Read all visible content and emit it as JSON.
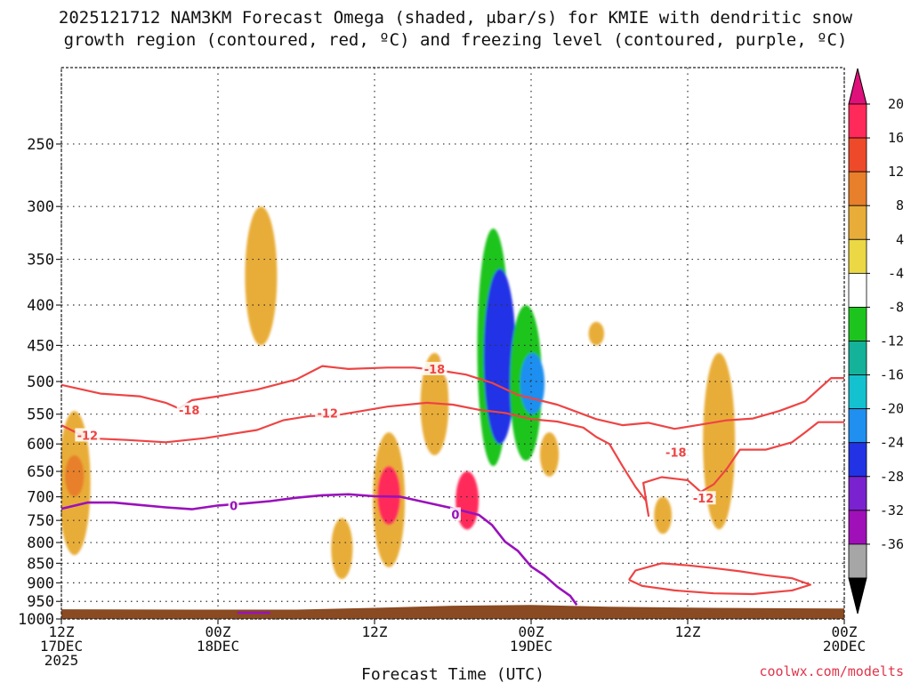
{
  "title": {
    "line1": "2025121712 NAM3KM Forecast Omega (shaded, μbar/s) for KMIE with dendritic snow",
    "line2": "growth region (contoured, red, ºC) and freezing level (contoured, purple, ºC)"
  },
  "credit": "coolwx.com/modelts",
  "colors": {
    "dgz": "#ee4444",
    "freezing": "#9911bb",
    "ground": "#8a4a22",
    "grid": "#333333"
  },
  "colorbar": {
    "labels": [
      "20",
      "16",
      "12",
      "8",
      "4",
      "-4",
      "-8",
      "-12",
      "-16",
      "-20",
      "-24",
      "-28",
      "-32",
      "-36"
    ],
    "colors": [
      "#ff2a5a",
      "#ee4a2a",
      "#e87f2a",
      "#e8ad38",
      "#ebd844",
      "#ffffff",
      "#1ec41e",
      "#15b29a",
      "#14c2cf",
      "#1f8ff0",
      "#2233e6",
      "#7a22cf",
      "#a010b8",
      "#a6a6a6"
    ],
    "top_arrow_color": "#e0107a",
    "bottom_arrow_color": "#000000"
  },
  "chart_data": {
    "type": "time-height cross section",
    "xlabel": "Forecast Time (UTC)",
    "x_ticks": [
      {
        "hour": 0,
        "line1": "12Z",
        "line2": "17DEC",
        "line3": "2025"
      },
      {
        "hour": 12,
        "line1": "00Z",
        "line2": "18DEC",
        "line3": ""
      },
      {
        "hour": 24,
        "line1": "12Z",
        "line2": "",
        "line3": ""
      },
      {
        "hour": 36,
        "line1": "00Z",
        "line2": "19DEC",
        "line3": ""
      },
      {
        "hour": 48,
        "line1": "12Z",
        "line2": "",
        "line3": ""
      },
      {
        "hour": 60,
        "line1": "00Z",
        "line2": "20DEC",
        "line3": ""
      }
    ],
    "xlim": [
      0,
      60
    ],
    "y_levels": [
      250,
      300,
      350,
      400,
      450,
      500,
      550,
      600,
      650,
      700,
      750,
      800,
      850,
      900,
      950,
      1000
    ],
    "y_axis": "pressure (hPa), log scale, inverted",
    "ylim": [
      1000,
      200
    ],
    "contour_labels": [
      {
        "text": "-18",
        "series": "dgz",
        "hour": 9.8,
        "p": 543
      },
      {
        "text": "-18",
        "series": "dgz",
        "hour": 28.6,
        "p": 482
      },
      {
        "text": "-18",
        "series": "dgz",
        "hour": 47.1,
        "p": 615
      },
      {
        "text": "-12",
        "series": "dgz",
        "hour": 2.0,
        "p": 585
      },
      {
        "text": "-12",
        "series": "dgz",
        "hour": 20.4,
        "p": 548
      },
      {
        "text": "-12",
        "series": "dgz",
        "hour": 49.2,
        "p": 703
      },
      {
        "text": "0",
        "series": "freezing",
        "hour": 13.2,
        "p": 718
      },
      {
        "text": "0",
        "series": "freezing",
        "hour": 30.2,
        "p": 737
      }
    ],
    "contours": {
      "dgz_minus18_upper": [
        [
          0,
          505
        ],
        [
          3,
          518
        ],
        [
          6,
          522
        ],
        [
          8,
          532
        ],
        [
          9,
          541
        ],
        [
          10,
          528
        ],
        [
          12,
          522
        ],
        [
          15,
          512
        ],
        [
          18,
          497
        ],
        [
          20,
          478
        ],
        [
          22,
          482
        ],
        [
          25,
          480
        ],
        [
          27,
          480
        ],
        [
          29,
          484
        ],
        [
          31,
          490
        ],
        [
          33,
          502
        ],
        [
          35,
          520
        ],
        [
          38,
          535
        ],
        [
          41,
          558
        ],
        [
          43,
          568
        ],
        [
          45,
          564
        ],
        [
          47,
          574
        ],
        [
          49,
          567
        ],
        [
          51,
          560
        ],
        [
          53,
          557
        ],
        [
          55,
          545
        ],
        [
          57,
          530
        ],
        [
          58,
          512
        ],
        [
          59,
          495
        ],
        [
          60,
          495
        ]
      ],
      "dgz_minus12_lower": [
        [
          0,
          568
        ],
        [
          2,
          590
        ],
        [
          5,
          593
        ],
        [
          8,
          597
        ],
        [
          11,
          590
        ],
        [
          13,
          583
        ],
        [
          15,
          576
        ],
        [
          17,
          560
        ],
        [
          19,
          553
        ],
        [
          21,
          552
        ],
        [
          23,
          545
        ],
        [
          25,
          538
        ],
        [
          28,
          532
        ],
        [
          30,
          535
        ],
        [
          32,
          543
        ],
        [
          34,
          548
        ],
        [
          36,
          558
        ],
        [
          38,
          562
        ],
        [
          40,
          572
        ],
        [
          41,
          588
        ],
        [
          42,
          600
        ],
        [
          43,
          640
        ],
        [
          44,
          680
        ],
        [
          44.8,
          708
        ],
        [
          45,
          740
        ],
        [
          44.6,
          672
        ],
        [
          46,
          661
        ],
        [
          48,
          667
        ],
        [
          49,
          690
        ],
        [
          50,
          675
        ],
        [
          51,
          645
        ],
        [
          52,
          610
        ],
        [
          54,
          610
        ],
        [
          56,
          597
        ],
        [
          57,
          580
        ],
        [
          58,
          563
        ],
        [
          60,
          563
        ]
      ],
      "dgz_ring": [
        [
          43.5,
          892
        ],
        [
          44,
          868
        ],
        [
          46,
          850
        ],
        [
          48,
          855
        ],
        [
          50,
          862
        ],
        [
          52,
          870
        ],
        [
          54,
          880
        ],
        [
          56,
          888
        ],
        [
          57.4,
          905
        ],
        [
          56,
          920
        ],
        [
          53,
          930
        ],
        [
          50,
          928
        ],
        [
          47,
          920
        ],
        [
          44.5,
          908
        ],
        [
          43.5,
          892
        ]
      ],
      "freezing_zero": [
        [
          0,
          725
        ],
        [
          2,
          712
        ],
        [
          4,
          712
        ],
        [
          6,
          717
        ],
        [
          8,
          722
        ],
        [
          10,
          726
        ],
        [
          12,
          718
        ],
        [
          14,
          714
        ],
        [
          16,
          709
        ],
        [
          18,
          702
        ],
        [
          20,
          697
        ],
        [
          22,
          695
        ],
        [
          24,
          699
        ],
        [
          26,
          700
        ],
        [
          28,
          712
        ],
        [
          30,
          724
        ],
        [
          32,
          738
        ],
        [
          33,
          760
        ],
        [
          34,
          798
        ],
        [
          35,
          820
        ],
        [
          36,
          858
        ],
        [
          37,
          880
        ],
        [
          38,
          910
        ],
        [
          39,
          935
        ],
        [
          39.5,
          960
        ]
      ],
      "freezing_sfc": [
        [
          13.5,
          982
        ],
        [
          16,
          982
        ]
      ]
    },
    "omega_shaded_regions": [
      {
        "hour": 1.0,
        "p_top": 545,
        "p_bottom": 830,
        "value": 6
      },
      {
        "hour": 1.0,
        "p_top": 620,
        "p_bottom": 700,
        "value": 10
      },
      {
        "hour": 2.1,
        "p_top": 320,
        "p_bottom": 390,
        "value": -6
      },
      {
        "hour": 5.1,
        "p_top": 645,
        "p_bottom": 715,
        "value": -6
      },
      {
        "hour": 8.1,
        "p_top": 380,
        "p_bottom": 500,
        "value": -6
      },
      {
        "hour": 9.1,
        "p_top": 605,
        "p_bottom": 720,
        "value": -6
      },
      {
        "hour": 15.3,
        "p_top": 300,
        "p_bottom": 450,
        "value": 6
      },
      {
        "hour": 20.3,
        "p_top": 320,
        "p_bottom": 380,
        "value": -6
      },
      {
        "hour": 21.1,
        "p_top": 420,
        "p_bottom": 610,
        "value": -6
      },
      {
        "hour": 21.5,
        "p_top": 745,
        "p_bottom": 890,
        "value": 6
      },
      {
        "hour": 25.1,
        "p_top": 580,
        "p_bottom": 860,
        "value": 8
      },
      {
        "hour": 25.1,
        "p_top": 640,
        "p_bottom": 760,
        "value": 17
      },
      {
        "hour": 28.6,
        "p_top": 460,
        "p_bottom": 620,
        "value": 6
      },
      {
        "hour": 29.8,
        "p_top": 265,
        "p_bottom": 500,
        "value": -6
      },
      {
        "hour": 31.1,
        "p_top": 650,
        "p_bottom": 770,
        "value": 17
      },
      {
        "hour": 33.1,
        "p_top": 320,
        "p_bottom": 640,
        "value": -8
      },
      {
        "hour": 33.6,
        "p_top": 360,
        "p_bottom": 600,
        "value": -26
      },
      {
        "hour": 35.6,
        "p_top": 400,
        "p_bottom": 630,
        "value": -10
      },
      {
        "hour": 36.1,
        "p_top": 460,
        "p_bottom": 550,
        "value": -22
      },
      {
        "hour": 37.4,
        "p_top": 580,
        "p_bottom": 660,
        "value": 6
      },
      {
        "hour": 41.0,
        "p_top": 420,
        "p_bottom": 450,
        "value": 6
      },
      {
        "hour": 46.1,
        "p_top": 700,
        "p_bottom": 780,
        "value": 6
      },
      {
        "hour": 50.4,
        "p_top": 460,
        "p_bottom": 770,
        "value": 6
      },
      {
        "hour": 59.9,
        "p_top": 240,
        "p_bottom": 400,
        "value": -6
      }
    ]
  }
}
